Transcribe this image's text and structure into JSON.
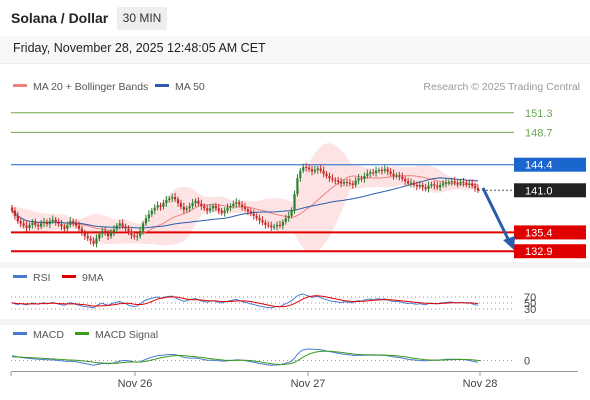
{
  "header": {
    "title": "Solana / Dollar",
    "timeframe": "30 MIN",
    "date": "Friday, November 28, 2025 12:48:05 AM CET"
  },
  "legend": {
    "ma20": "MA 20 + Bollinger Bands",
    "ma50": "MA 50",
    "credit": "Research © 2025 Trading Central",
    "rsi": "RSI",
    "rsi_ma": "9MA",
    "macd": "MACD",
    "macd_signal": "MACD Signal"
  },
  "colors": {
    "ma20": "#f08080",
    "ma50": "#2a5caa",
    "band": "#fcd9d9",
    "bull": "#2e7d32",
    "bear": "#c62828",
    "resistance_green": "#6aa84f",
    "pivot_blue": "#1a66cc",
    "support_red": "#e00000",
    "rsi": "#4a7bd0",
    "rsi_ma": "#e00000",
    "macd": "#4a7bd0",
    "macd_signal": "#3a9a1a"
  },
  "chart_data": [
    {
      "type": "candlestick",
      "x_labels": [
        "Nov 26",
        "Nov 27",
        "Nov 28"
      ],
      "ylim": [
        132.0,
        153.0
      ],
      "levels": [
        {
          "value": 151.3,
          "label": "151.3",
          "style": "resistance"
        },
        {
          "value": 148.7,
          "label": "148.7",
          "style": "resistance"
        },
        {
          "value": 144.4,
          "label": "144.4",
          "style": "pivot"
        },
        {
          "value": 141.0,
          "label": "141.0",
          "style": "last"
        },
        {
          "value": 135.4,
          "label": "135.4",
          "style": "support"
        },
        {
          "value": 132.9,
          "label": "132.9",
          "style": "support"
        }
      ],
      "closes": [
        138.3,
        137.6,
        136.9,
        136.6,
        136.3,
        136.0,
        136.4,
        136.7,
        136.4,
        136.2,
        136.6,
        136.8,
        136.5,
        136.9,
        137.1,
        136.8,
        136.5,
        136.2,
        135.9,
        136.4,
        136.9,
        136.7,
        136.3,
        135.9,
        135.3,
        134.9,
        134.6,
        134.3,
        133.9,
        134.6,
        135.2,
        135.6,
        135.3,
        134.9,
        135.4,
        135.8,
        136.3,
        136.6,
        136.2,
        135.9,
        135.4,
        135.0,
        134.8,
        134.9,
        135.6,
        136.6,
        137.3,
        137.8,
        138.3,
        138.7,
        139.0,
        138.8,
        139.3,
        139.7,
        139.9,
        140.1,
        139.8,
        139.3,
        138.8,
        138.4,
        138.6,
        138.9,
        139.3,
        139.6,
        139.2,
        138.9,
        138.6,
        138.3,
        138.6,
        138.9,
        138.6,
        138.3,
        138.0,
        138.3,
        138.7,
        138.9,
        139.2,
        139.4,
        139.1,
        138.8,
        138.5,
        138.2,
        137.9,
        137.6,
        137.3,
        137.0,
        136.7,
        136.4,
        136.3,
        136.1,
        136.2,
        136.4,
        136.3,
        136.8,
        137.3,
        137.6,
        138.4,
        140.5,
        142.6,
        143.6,
        144.1,
        144.0,
        143.8,
        143.5,
        143.7,
        143.9,
        143.6,
        143.2,
        142.9,
        142.6,
        142.4,
        142.3,
        142.1,
        141.9,
        142.1,
        142.0,
        141.9,
        141.7,
        142.3,
        142.6,
        142.5,
        142.9,
        143.2,
        143.4,
        143.3,
        143.6,
        143.7,
        143.6,
        143.8,
        143.5,
        143.2,
        142.9,
        143.0,
        142.8,
        142.5,
        142.2,
        141.9,
        142.0,
        141.7,
        141.5,
        141.7,
        141.4,
        141.2,
        141.6,
        141.8,
        141.6,
        141.4,
        141.7,
        141.9,
        142.0,
        142.1,
        142.2,
        142.0,
        141.9,
        142.1,
        142.0,
        141.8,
        141.9,
        141.6,
        141.3,
        141.0
      ]
    },
    {
      "type": "line",
      "name_rsi": "RSI",
      "ylim": [
        20,
        80
      ],
      "ticks": [
        70,
        50,
        30
      ],
      "series": [
        {
          "name": "RSI",
          "values": [
            52,
            47,
            45,
            48,
            46,
            44,
            47,
            50,
            48,
            46,
            49,
            51,
            47,
            50,
            52,
            49,
            46,
            44,
            42,
            47,
            51,
            49,
            45,
            43,
            40,
            38,
            37,
            36,
            34,
            41,
            46,
            49,
            45,
            42,
            47,
            50,
            53,
            55,
            51,
            48,
            43,
            40,
            38,
            40,
            47,
            55,
            60,
            63,
            66,
            68,
            70,
            66,
            69,
            71,
            72,
            73,
            69,
            63,
            59,
            56,
            58,
            61,
            63,
            65,
            60,
            57,
            55,
            52,
            56,
            58,
            55,
            52,
            50,
            53,
            56,
            58,
            60,
            62,
            58,
            55,
            52,
            50,
            47,
            45,
            42,
            40,
            38,
            36,
            35,
            34,
            36,
            39,
            37,
            43,
            48,
            52,
            58,
            66,
            74,
            78,
            80,
            76,
            73,
            69,
            71,
            72,
            68,
            64,
            61,
            58,
            56,
            55,
            53,
            51,
            54,
            53,
            52,
            50,
            56,
            58,
            56,
            60,
            62,
            63,
            61,
            63,
            64,
            62,
            64,
            60,
            57,
            55,
            56,
            54,
            52,
            50,
            48,
            50,
            47,
            46,
            48,
            46,
            44,
            48,
            50,
            48,
            47,
            50,
            51,
            52,
            53,
            53,
            51,
            50,
            52,
            51,
            49,
            50,
            47,
            44,
            42
          ]
        },
        {
          "name": "9MA",
          "values": [
            50,
            49,
            48,
            48,
            47,
            47,
            47,
            47,
            47,
            47,
            48,
            48,
            48,
            49,
            49,
            49,
            48,
            48,
            47,
            47,
            47,
            47,
            47,
            46,
            45,
            44,
            43,
            41,
            40,
            40,
            40,
            41,
            41,
            42,
            43,
            44,
            46,
            48,
            48,
            49,
            49,
            48,
            46,
            45,
            45,
            46,
            48,
            51,
            55,
            59,
            63,
            65,
            67,
            69,
            70,
            70,
            70,
            69,
            67,
            65,
            63,
            62,
            61,
            61,
            61,
            60,
            59,
            58,
            57,
            57,
            57,
            56,
            55,
            55,
            55,
            55,
            56,
            57,
            57,
            57,
            57,
            56,
            55,
            53,
            51,
            49,
            47,
            45,
            43,
            41,
            39,
            38,
            38,
            38,
            39,
            41,
            44,
            48,
            53,
            58,
            64,
            68,
            71,
            73,
            74,
            74,
            73,
            72,
            70,
            68,
            66,
            64,
            62,
            60,
            58,
            57,
            56,
            55,
            55,
            55,
            56,
            56,
            57,
            58,
            59,
            60,
            60,
            61,
            61,
            61,
            61,
            60,
            59,
            58,
            57,
            56,
            55,
            54,
            53,
            52,
            51,
            50,
            49,
            49,
            48,
            48,
            48,
            48,
            49,
            49,
            50,
            51,
            51,
            51,
            51,
            51,
            51,
            51,
            50,
            49,
            48
          ]
        }
      ]
    },
    {
      "type": "line",
      "ylim": [
        -1.6,
        2.6
      ],
      "ticks": [
        0
      ],
      "series": [
        {
          "name": "MACD",
          "values": [
            0.8,
            0.7,
            0.6,
            0.5,
            0.45,
            0.4,
            0.35,
            0.3,
            0.25,
            0.2,
            0.18,
            0.15,
            0.12,
            0.1,
            0.1,
            0.05,
            0.0,
            -0.05,
            -0.1,
            -0.15,
            -0.1,
            -0.12,
            -0.2,
            -0.3,
            -0.4,
            -0.5,
            -0.6,
            -0.7,
            -0.8,
            -0.7,
            -0.6,
            -0.5,
            -0.5,
            -0.55,
            -0.5,
            -0.4,
            -0.25,
            -0.1,
            0.0,
            0.0,
            -0.05,
            -0.15,
            -0.25,
            -0.3,
            -0.2,
            0.0,
            0.2,
            0.4,
            0.55,
            0.7,
            0.8,
            0.85,
            0.9,
            0.95,
            1.0,
            1.0,
            0.95,
            0.85,
            0.7,
            0.55,
            0.45,
            0.4,
            0.4,
            0.4,
            0.35,
            0.25,
            0.15,
            0.05,
            0.05,
            0.05,
            0.0,
            -0.05,
            -0.1,
            -0.1,
            -0.05,
            0.0,
            0.05,
            0.1,
            0.1,
            0.05,
            0.0,
            -0.1,
            -0.2,
            -0.3,
            -0.4,
            -0.5,
            -0.6,
            -0.7,
            -0.75,
            -0.8,
            -0.78,
            -0.75,
            -0.72,
            -0.6,
            -0.45,
            -0.3,
            -0.1,
            0.4,
            1.0,
            1.5,
            1.8,
            1.9,
            1.95,
            1.9,
            1.88,
            1.85,
            1.8,
            1.7,
            1.6,
            1.5,
            1.4,
            1.3,
            1.2,
            1.1,
            1.05,
            1.0,
            0.95,
            0.85,
            0.85,
            0.88,
            0.85,
            0.88,
            0.9,
            0.92,
            0.88,
            0.9,
            0.9,
            0.85,
            0.85,
            0.78,
            0.7,
            0.6,
            0.55,
            0.5,
            0.4,
            0.3,
            0.2,
            0.15,
            0.1,
            0.05,
            0.0,
            -0.05,
            -0.05,
            0.0,
            0.05,
            0.05,
            0.05,
            0.1,
            0.15,
            0.2,
            0.2,
            0.2,
            0.2,
            0.2,
            0.2,
            0.15,
            0.1,
            0.0,
            -0.1,
            -0.2,
            -0.3
          ]
        },
        {
          "name": "MACD Signal",
          "values": [
            0.6,
            0.6,
            0.58,
            0.56,
            0.54,
            0.52,
            0.5,
            0.47,
            0.44,
            0.41,
            0.38,
            0.35,
            0.32,
            0.29,
            0.26,
            0.23,
            0.2,
            0.17,
            0.14,
            0.1,
            0.08,
            0.06,
            0.03,
            0.0,
            -0.05,
            -0.1,
            -0.16,
            -0.22,
            -0.3,
            -0.36,
            -0.4,
            -0.43,
            -0.45,
            -0.47,
            -0.48,
            -0.47,
            -0.45,
            -0.41,
            -0.36,
            -0.31,
            -0.27,
            -0.25,
            -0.25,
            -0.26,
            -0.25,
            -0.2,
            -0.12,
            -0.03,
            0.08,
            0.2,
            0.32,
            0.43,
            0.53,
            0.62,
            0.7,
            0.77,
            0.82,
            0.84,
            0.84,
            0.81,
            0.77,
            0.72,
            0.67,
            0.62,
            0.57,
            0.52,
            0.45,
            0.38,
            0.31,
            0.25,
            0.19,
            0.14,
            0.09,
            0.05,
            0.02,
            0.01,
            0.01,
            0.02,
            0.04,
            0.04,
            0.04,
            0.02,
            -0.02,
            -0.08,
            -0.15,
            -0.23,
            -0.31,
            -0.4,
            -0.48,
            -0.55,
            -0.61,
            -0.65,
            -0.67,
            -0.67,
            -0.64,
            -0.58,
            -0.49,
            -0.31,
            -0.05,
            0.27,
            0.58,
            0.85,
            1.07,
            1.24,
            1.37,
            1.46,
            1.52,
            1.55,
            1.56,
            1.55,
            1.52,
            1.48,
            1.42,
            1.36,
            1.3,
            1.24,
            1.18,
            1.11,
            1.06,
            1.02,
            0.99,
            0.97,
            0.96,
            0.95,
            0.94,
            0.93,
            0.93,
            0.92,
            0.91,
            0.89,
            0.86,
            0.82,
            0.78,
            0.73,
            0.67,
            0.6,
            0.53,
            0.45,
            0.38,
            0.31,
            0.24,
            0.18,
            0.13,
            0.09,
            0.07,
            0.06,
            0.06,
            0.06,
            0.08,
            0.1,
            0.12,
            0.14,
            0.15,
            0.16,
            0.17,
            0.17,
            0.16,
            0.14,
            0.11,
            0.07,
            0.02,
            -0.04
          ]
        }
      ]
    }
  ]
}
